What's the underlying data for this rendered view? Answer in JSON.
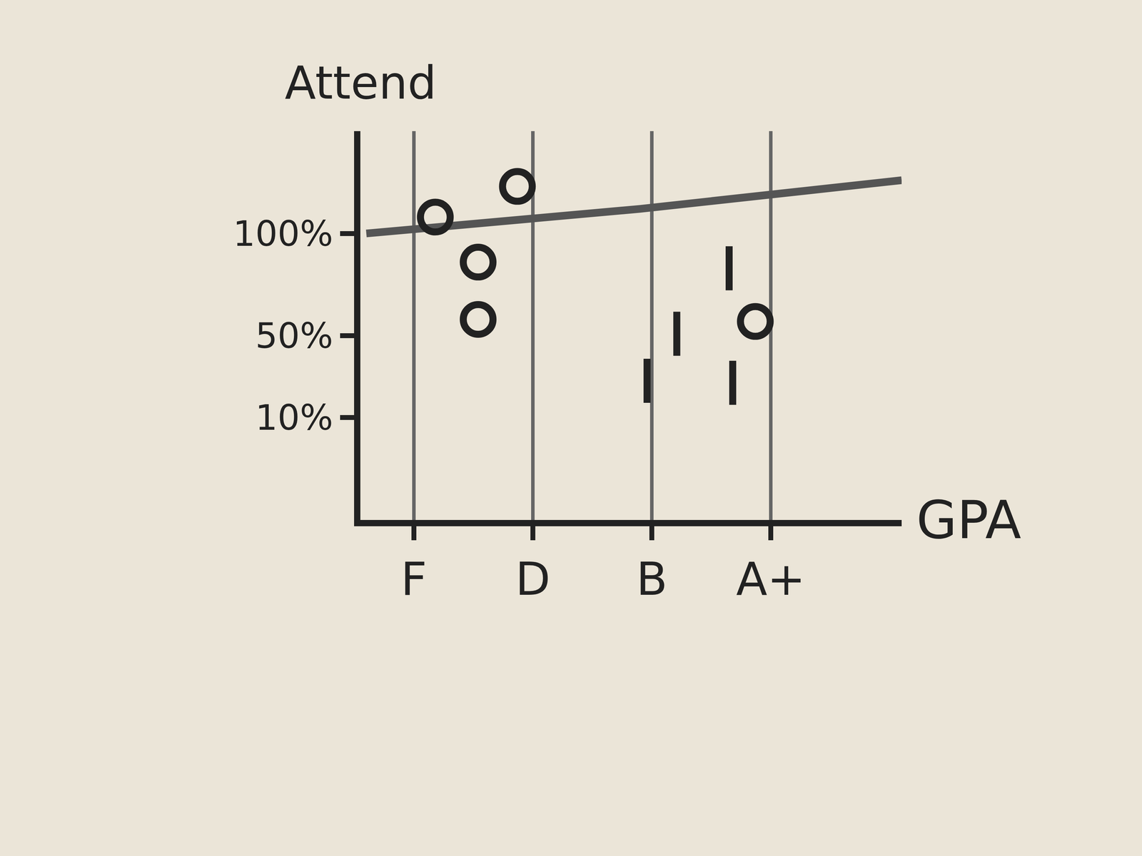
{
  "chart_data": {
    "type": "scatter",
    "xlabel": "GPA",
    "ylabel": "Attend",
    "xlim": [
      -0.45,
      4.1
    ],
    "xticks": [
      {
        "value": 0,
        "label": "F"
      },
      {
        "value": 1,
        "label": "D"
      },
      {
        "value": 2,
        "label": "B"
      },
      {
        "value": 3,
        "label": "A+"
      }
    ],
    "ylim": [
      -40,
      150
    ],
    "yticks": [
      {
        "value": 10,
        "label": "10%"
      },
      {
        "value": 50,
        "label": "50%"
      },
      {
        "value": 100,
        "label": "100%"
      }
    ],
    "grid": "x",
    "series": [
      {
        "type": "line",
        "color": "#555555",
        "x": [
          -0.4,
          1.9,
          4.1
        ],
        "values": [
          100,
          112,
          126
        ]
      },
      {
        "type": "scatter",
        "marker": "circle-open",
        "color": "#222222",
        "x": [
          0.18,
          0.87,
          0.54,
          0.54,
          2.87
        ],
        "values": [
          108,
          123,
          86,
          58,
          57
        ]
      },
      {
        "type": "scatter",
        "marker": "line-ns-open",
        "color": "#222222",
        "x": [
          2.65,
          2.21,
          1.96,
          2.68
        ],
        "values": [
          83,
          51,
          28,
          27
        ]
      }
    ]
  }
}
